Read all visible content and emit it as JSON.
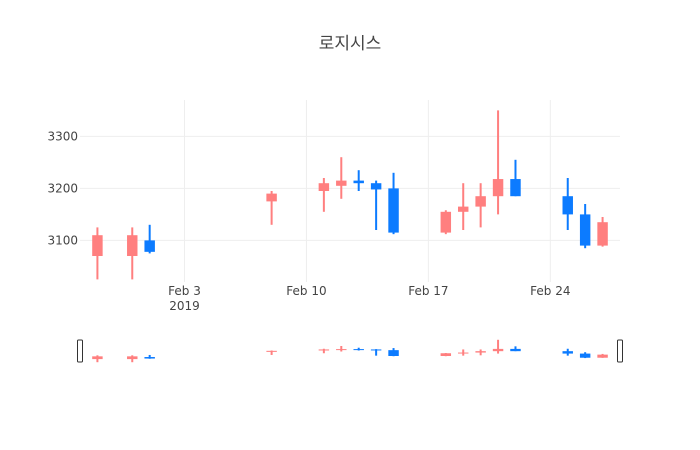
{
  "chart_data": {
    "type": "candlestick",
    "title": "로지시스",
    "increasing_color": "#FF7F7F",
    "decreasing_color": "#0C7BFF",
    "grid": true,
    "rangeslider": true,
    "y_ticks": [
      3100,
      3200,
      3300
    ],
    "y_tick_labels": [
      "3100",
      "3200",
      "3300"
    ],
    "ylim": [
      3020,
      3370
    ],
    "xlim": [
      "2019-01-28",
      "2019-02-28"
    ],
    "x_ticks": [
      {
        "date": "2019-02-03",
        "label": "Feb 3",
        "sublabel": "2019"
      },
      {
        "date": "2019-02-10",
        "label": "Feb 10",
        "sublabel": ""
      },
      {
        "date": "2019-02-17",
        "label": "Feb 17",
        "sublabel": ""
      },
      {
        "date": "2019-02-24",
        "label": "Feb 24",
        "sublabel": ""
      }
    ],
    "candles": [
      {
        "date": "2019-01-29",
        "open": 3070,
        "high": 3125,
        "low": 3025,
        "close": 3110
      },
      {
        "date": "2019-01-31",
        "open": 3070,
        "high": 3125,
        "low": 3025,
        "close": 3110
      },
      {
        "date": "2019-02-01",
        "open": 3100,
        "high": 3130,
        "low": 3075,
        "close": 3078
      },
      {
        "date": "2019-02-08",
        "open": 3175,
        "high": 3195,
        "low": 3130,
        "close": 3190
      },
      {
        "date": "2019-02-11",
        "open": 3195,
        "high": 3220,
        "low": 3155,
        "close": 3210
      },
      {
        "date": "2019-02-12",
        "open": 3205,
        "high": 3260,
        "low": 3180,
        "close": 3215
      },
      {
        "date": "2019-02-13",
        "open": 3215,
        "high": 3235,
        "low": 3195,
        "close": 3210
      },
      {
        "date": "2019-02-14",
        "open": 3210,
        "high": 3215,
        "low": 3120,
        "close": 3198
      },
      {
        "date": "2019-02-15",
        "open": 3200,
        "high": 3230,
        "low": 3112,
        "close": 3115
      },
      {
        "date": "2019-02-18",
        "open": 3115,
        "high": 3158,
        "low": 3112,
        "close": 3155
      },
      {
        "date": "2019-02-19",
        "open": 3155,
        "high": 3210,
        "low": 3120,
        "close": 3165
      },
      {
        "date": "2019-02-20",
        "open": 3165,
        "high": 3210,
        "low": 3125,
        "close": 3185
      },
      {
        "date": "2019-02-21",
        "open": 3185,
        "high": 3350,
        "low": 3150,
        "close": 3218
      },
      {
        "date": "2019-02-22",
        "open": 3218,
        "high": 3255,
        "low": 3185,
        "close": 3185
      },
      {
        "date": "2019-02-25",
        "open": 3185,
        "high": 3220,
        "low": 3120,
        "close": 3150
      },
      {
        "date": "2019-02-26",
        "open": 3150,
        "high": 3170,
        "low": 3085,
        "close": 3090
      },
      {
        "date": "2019-02-27",
        "open": 3090,
        "high": 3145,
        "low": 3088,
        "close": 3135
      }
    ]
  }
}
